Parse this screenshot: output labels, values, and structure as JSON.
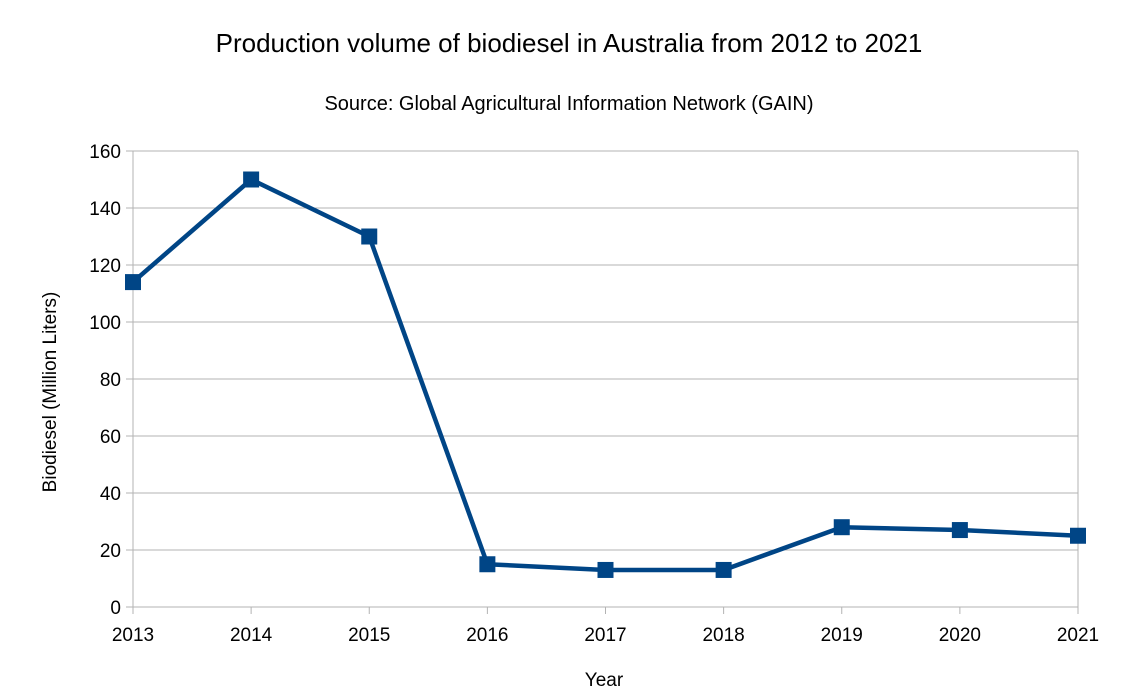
{
  "chart_data": {
    "type": "line",
    "title": "Production volume of biodiesel in Australia from 2012 to 2021",
    "subtitle": "Source: Global Agricultural Information Network (GAIN)",
    "xlabel": "Year",
    "ylabel": "Biodiesel (Million Liters)",
    "categories": [
      "2013",
      "2014",
      "2015",
      "2016",
      "2017",
      "2018",
      "2019",
      "2020",
      "2021"
    ],
    "series": [
      {
        "values": [
          114,
          150,
          130,
          15,
          13,
          13,
          28,
          27,
          25
        ]
      }
    ],
    "yticks": [
      0,
      20,
      40,
      60,
      80,
      100,
      120,
      140,
      160
    ],
    "ylim": [
      0,
      160
    ],
    "grid": true,
    "legend": "none",
    "colors": {
      "series": "#004586",
      "grid": "#b3b3b3"
    }
  }
}
